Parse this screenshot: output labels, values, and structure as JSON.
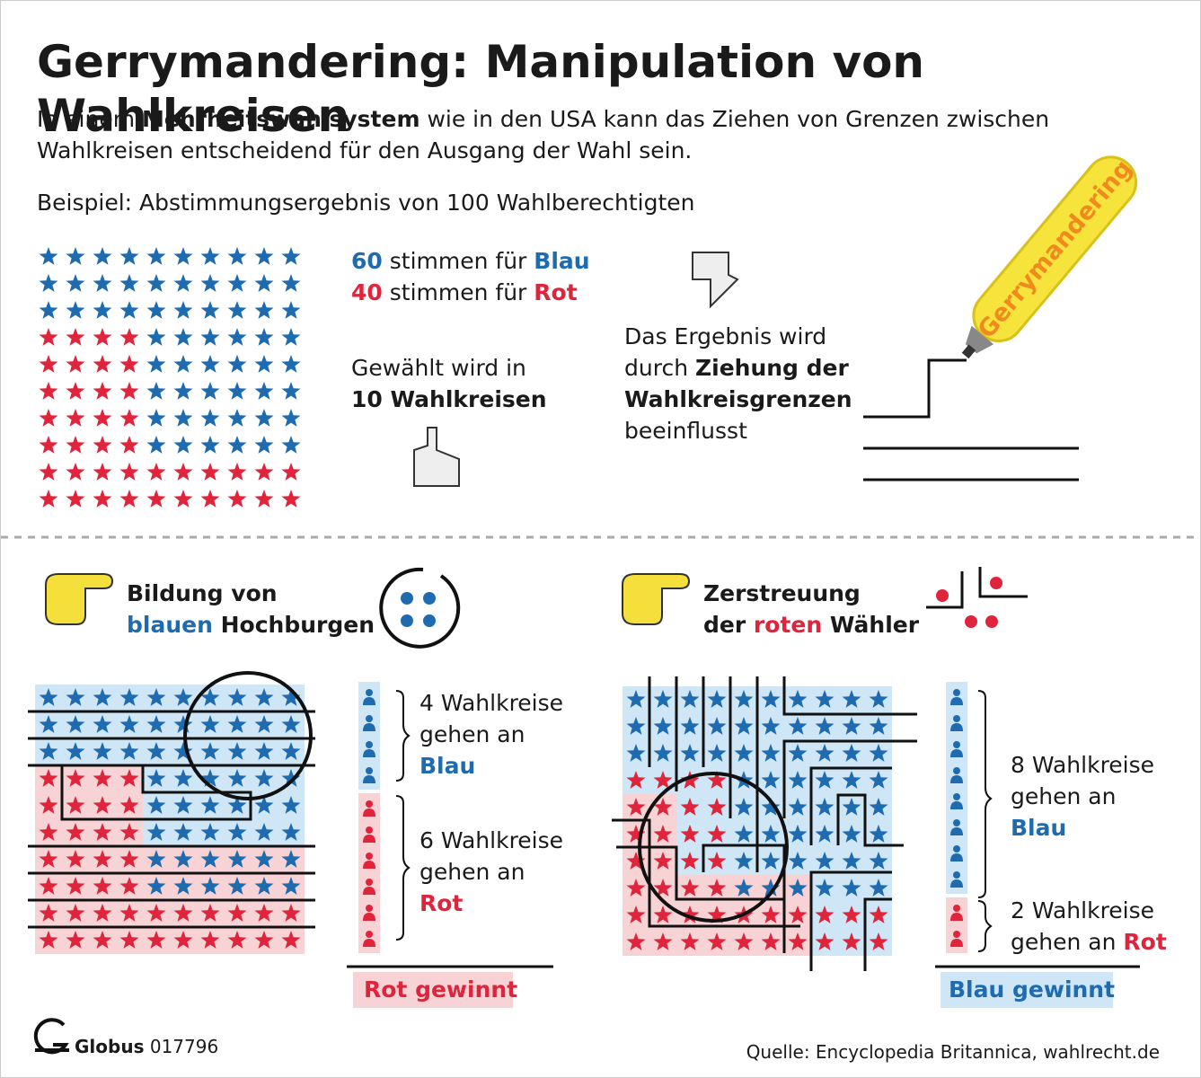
{
  "title": "Gerrymandering: Manipulation von Wahlkreisen",
  "intro": {
    "before": "In einem ",
    "bold": "Mehrheitswahlsystem",
    "after": " wie in den USA kann das Ziehen von Grenzen zwischen Wahlkreisen entscheidend für den Ausgang der Wahl sein."
  },
  "example": "Beispiel: Abstimmungsergebnis von 100 Wahlberechtigten",
  "votes": [
    {
      "count": 60,
      "text": "stimmen für",
      "party": "Blau"
    },
    {
      "count": 40,
      "text": "stimmen für",
      "party": "Rot"
    }
  ],
  "elected": {
    "text": "Gewählt wird in",
    "bold": "10 Wahlkreisen"
  },
  "influence": {
    "before": "Das Ergebnis wird durch",
    "bold": "Ziehung der Wahlkreisgrenzen",
    "after": "beeinflusst"
  },
  "marker": "Gerrymandering",
  "left": {
    "heading": [
      "Bildung von",
      "blauen",
      "Hochburgen"
    ],
    "results": [
      {
        "count": 4,
        "unit": "Wahlkreise",
        "verb": "gehen an",
        "party": "Blau"
      },
      {
        "count": 6,
        "unit": "Wahlkreise",
        "verb": "gehen an",
        "party": "Rot"
      }
    ],
    "outcome": "Rot gewinnt"
  },
  "right": {
    "heading": [
      "Zerstreuung",
      "der",
      "roten",
      "Wähler"
    ],
    "results": [
      {
        "count": 8,
        "unit": "Wahlkreise",
        "verb": "gehen an",
        "party": "Blau"
      },
      {
        "count": 2,
        "unit": "Wahlkreise",
        "verb": "gehen an",
        "party": "Rot"
      }
    ],
    "outcome": "Blau gewinnt"
  },
  "footer": {
    "brand": "Globus",
    "number": "017796",
    "source": "Quelle: Encyclopedia Britannica, wahlrecht.de"
  }
}
